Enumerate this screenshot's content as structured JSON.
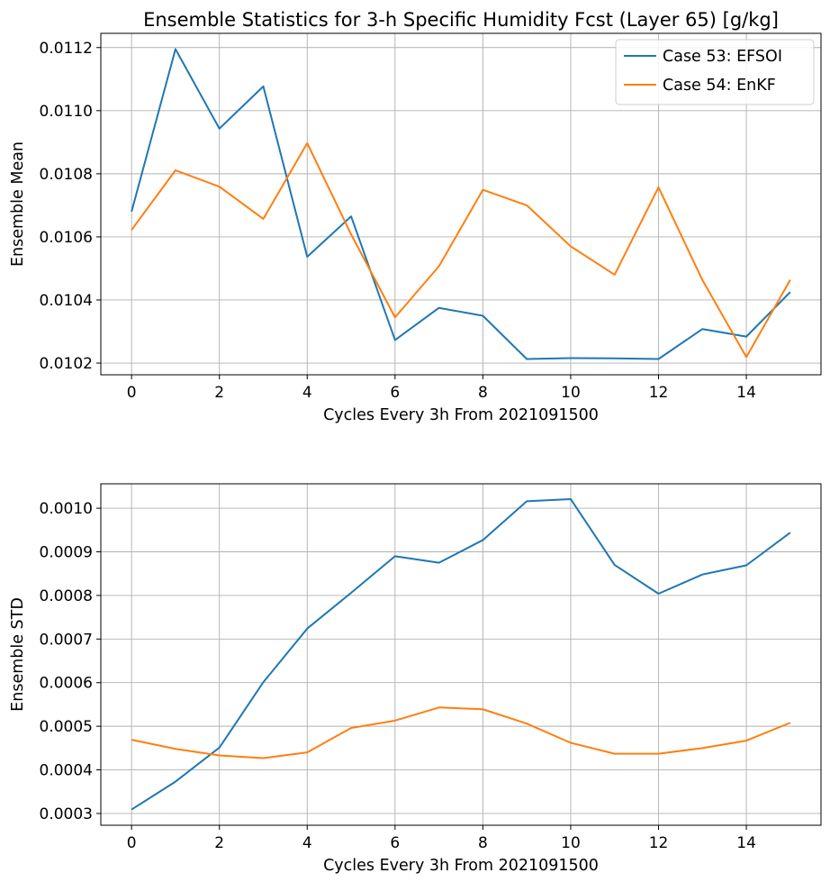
{
  "chart_data": [
    {
      "type": "line",
      "title": "Ensemble Statistics for 3-h Specific Humidity Fcst (Layer 65) [g/kg]",
      "xlabel": "Cycles Every 3h From 2021091500",
      "ylabel": "Ensemble Mean",
      "xlim": [
        -0.7,
        15.7
      ],
      "ylim": [
        0.010163,
        0.011245
      ],
      "xticks": [
        0,
        2,
        4,
        6,
        8,
        10,
        12,
        14
      ],
      "yticks": [
        0.0102,
        0.0104,
        0.0106,
        0.0108,
        0.011,
        0.0112
      ],
      "ytick_labels": [
        "0.0102",
        "0.0104",
        "0.0106",
        "0.0108",
        "0.0110",
        "0.0112"
      ],
      "grid": true,
      "legend": "upper right",
      "x": [
        0,
        1,
        2,
        3,
        4,
        5,
        6,
        7,
        8,
        9,
        10,
        11,
        12,
        13,
        14,
        15
      ],
      "series": [
        {
          "name": "Case 53: EFSOI",
          "color": "#1f77b4",
          "values": [
            0.01068,
            0.011195,
            0.010943,
            0.011077,
            0.010537,
            0.010665,
            0.010273,
            0.010375,
            0.01035,
            0.010213,
            0.010216,
            0.010215,
            0.010213,
            0.010308,
            0.010284,
            0.010425
          ]
        },
        {
          "name": "Case 54: EnKF",
          "color": "#ff7f0e",
          "values": [
            0.010622,
            0.010811,
            0.010759,
            0.010657,
            0.010897,
            0.010608,
            0.010345,
            0.010507,
            0.010749,
            0.0107,
            0.01057,
            0.01048,
            0.010757,
            0.010463,
            0.010219,
            0.010464
          ]
        }
      ]
    },
    {
      "type": "line",
      "title": "",
      "xlabel": "Cycles Every 3h From 2021091500",
      "ylabel": "Ensemble STD",
      "xlim": [
        -0.7,
        15.7
      ],
      "ylim": [
        0.000273,
        0.001056
      ],
      "xticks": [
        0,
        2,
        4,
        6,
        8,
        10,
        12,
        14
      ],
      "yticks": [
        0.0003,
        0.0004,
        0.0005,
        0.0006,
        0.0007,
        0.0008,
        0.0009,
        0.001
      ],
      "ytick_labels": [
        "0.0003",
        "0.0004",
        "0.0005",
        "0.0006",
        "0.0007",
        "0.0008",
        "0.0009",
        "0.0010"
      ],
      "grid": true,
      "x": [
        0,
        1,
        2,
        3,
        4,
        5,
        6,
        7,
        8,
        9,
        10,
        11,
        12,
        13,
        14,
        15
      ],
      "series": [
        {
          "color": "#1f77b4",
          "values": [
            0.000309,
            0.000373,
            0.000451,
            0.000601,
            0.000724,
            0.000806,
            0.00089,
            0.000875,
            0.000927,
            0.001016,
            0.001021,
            0.00087,
            0.000804,
            0.000848,
            0.000869,
            0.000944
          ]
        },
        {
          "color": "#ff7f0e",
          "values": [
            0.000469,
            0.000448,
            0.000433,
            0.000427,
            0.00044,
            0.000496,
            0.000513,
            0.000543,
            0.000539,
            0.000506,
            0.000462,
            0.000437,
            0.000437,
            0.00045,
            0.000467,
            0.000508
          ]
        }
      ]
    }
  ]
}
